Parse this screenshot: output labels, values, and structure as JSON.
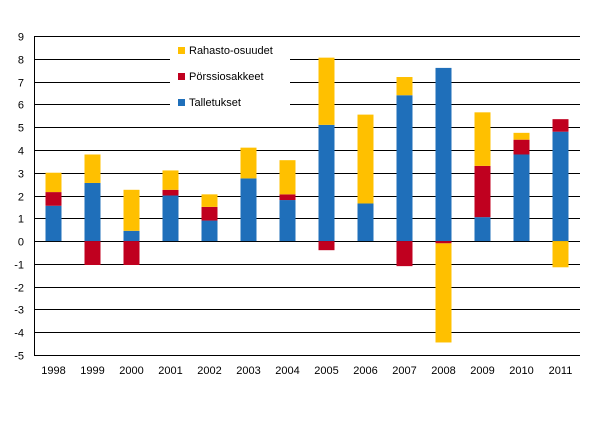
{
  "chart_data": {
    "type": "bar",
    "stacked": true,
    "title": "",
    "xlabel": "",
    "ylabel": "",
    "ylim": [
      -5,
      9
    ],
    "yticks": [
      -5,
      -4,
      -3,
      -2,
      -1,
      0,
      1,
      2,
      3,
      4,
      5,
      6,
      7,
      8,
      9
    ],
    "grid": true,
    "legend_position": "top-left",
    "categories": [
      "1998",
      "1999",
      "2000",
      "2001",
      "2002",
      "2003",
      "2004",
      "2005",
      "2006",
      "2007",
      "2008",
      "2009",
      "2010",
      "2011"
    ],
    "series": [
      {
        "name": "Talletukset",
        "color": "#1f6fba",
        "values": [
          1.55,
          2.55,
          0.45,
          2.0,
          0.9,
          2.75,
          1.8,
          5.1,
          1.65,
          6.4,
          7.6,
          1.05,
          3.8,
          4.8
        ]
      },
      {
        "name": "Pörssiosakkeet",
        "color": "#c0001f",
        "values": [
          0.6,
          -1.05,
          -1.05,
          0.25,
          0.6,
          0.0,
          0.25,
          -0.4,
          0.0,
          -1.1,
          -0.1,
          2.25,
          0.65,
          0.55
        ]
      },
      {
        "name": "Rahasto-osuudet",
        "color": "#ffc000",
        "values": [
          0.85,
          1.25,
          1.8,
          0.85,
          0.55,
          1.35,
          1.5,
          2.95,
          3.9,
          0.8,
          -4.35,
          2.35,
          0.3,
          -1.15
        ]
      }
    ],
    "legend_order": [
      "Rahasto-osuudet",
      "Pörssiosakkeet",
      "Talletukset"
    ]
  }
}
